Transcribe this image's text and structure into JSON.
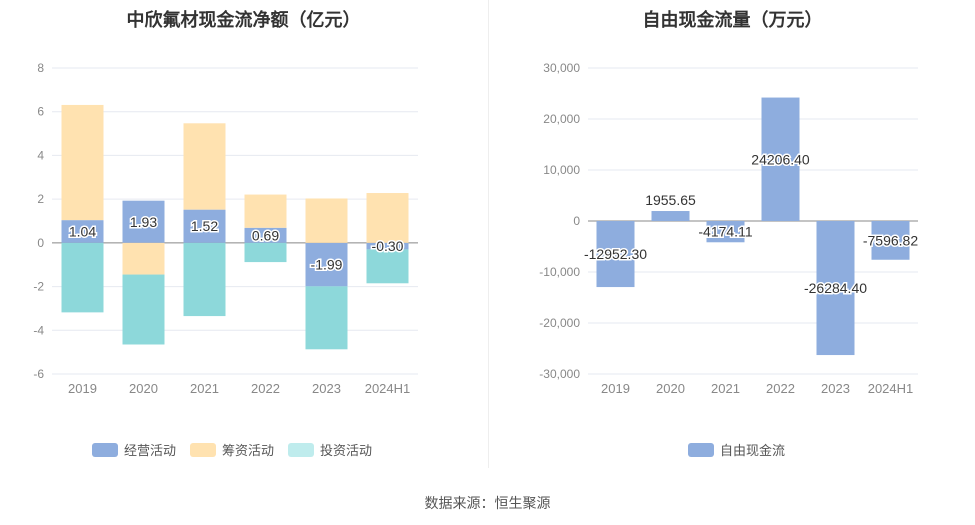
{
  "source_label": "数据来源：恒生聚源",
  "chart_data": [
    {
      "type": "bar",
      "stacked": true,
      "title": "中欣氟材现金流净额（亿元）",
      "categories": [
        "2019",
        "2020",
        "2021",
        "2022",
        "2023",
        "2024H1"
      ],
      "ylim": [
        -6,
        8
      ],
      "yticks": [
        -6,
        -4,
        -2,
        0,
        2,
        4,
        6,
        8
      ],
      "grid": true,
      "legend_position": "bottom",
      "series": [
        {
          "name": "经营活动",
          "color": "#8eadde",
          "values": [
            1.04,
            1.93,
            1.52,
            0.69,
            -1.99,
            -0.3
          ],
          "labels": [
            "1.04",
            "1.93",
            "1.52",
            "0.69",
            "-1.99",
            "-0.30"
          ]
        },
        {
          "name": "筹资活动",
          "color": "#ffe2b0",
          "values": [
            5.27,
            -1.45,
            3.95,
            1.52,
            2.03,
            2.28
          ]
        },
        {
          "name": "投资活动",
          "color": "#8dd8da",
          "values": [
            -3.18,
            -3.2,
            -3.35,
            -0.88,
            -2.88,
            -1.55
          ]
        }
      ]
    },
    {
      "type": "bar",
      "title": "自由现金流量（万元）",
      "categories": [
        "2019",
        "2020",
        "2021",
        "2022",
        "2023",
        "2024H1"
      ],
      "ylim": [
        -30000,
        30000
      ],
      "yticks": [
        -30000,
        -20000,
        -10000,
        0,
        10000,
        20000,
        30000
      ],
      "ytick_labels": [
        "-30,000",
        "-20,000",
        "-10,000",
        "0",
        "10,000",
        "20,000",
        "30,000"
      ],
      "grid": true,
      "legend_position": "bottom",
      "series": [
        {
          "name": "自由现金流",
          "color": "#8eadde",
          "values": [
            -12952.3,
            1955.65,
            -4174.11,
            24206.4,
            -26284.4,
            -7596.82
          ],
          "labels": [
            "-12952.30",
            "1955.65",
            "-4174.11",
            "24206.40",
            "-26284.40",
            "-7596.82"
          ]
        }
      ]
    }
  ]
}
